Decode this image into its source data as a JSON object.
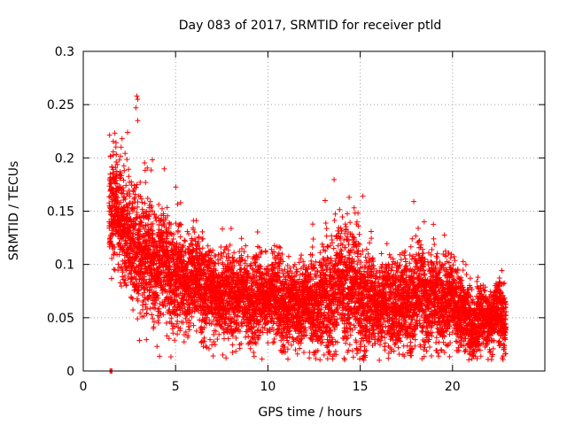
{
  "chart_data": {
    "type": "scatter",
    "title": "Day 083 of 2017, SRMTID for receiver ptld",
    "xlabel": "GPS time / hours",
    "ylabel": "SRMTID / TECUs",
    "xlim": [
      0,
      25
    ],
    "ylim": [
      0,
      0.3
    ],
    "xticks": [
      0,
      5,
      10,
      15,
      20
    ],
    "xtick_labels": [
      "0",
      "5",
      "10",
      "15",
      "20"
    ],
    "yticks": [
      0,
      0.05,
      0.1,
      0.15,
      0.2,
      0.25,
      0.3
    ],
    "ytick_labels": [
      "0",
      "0.05",
      "0.1",
      "0.15",
      "0.2",
      "0.25",
      "0.3"
    ],
    "grid": true,
    "legend": "none",
    "marker": "plus",
    "color": "#ff0000",
    "series": [
      {
        "name": "SRMTID",
        "x_range": [
          1.4,
          22.9
        ],
        "sample_step_hours": 0.0083,
        "points_per_sample": 3,
        "profile_hours": [
          1.4,
          2.0,
          3.0,
          4.0,
          5.0,
          6.0,
          8.0,
          10.0,
          12.0,
          13.0,
          14.0,
          15.0,
          16.0,
          17.0,
          18.0,
          19.0,
          20.0,
          21.0,
          22.0,
          22.9
        ],
        "typical_values": [
          0.16,
          0.14,
          0.11,
          0.1,
          0.09,
          0.08,
          0.07,
          0.07,
          0.06,
          0.07,
          0.08,
          0.07,
          0.06,
          0.065,
          0.065,
          0.07,
          0.065,
          0.045,
          0.05,
          0.05
        ],
        "spread_values": [
          0.03,
          0.03,
          0.035,
          0.03,
          0.03,
          0.025,
          0.022,
          0.02,
          0.02,
          0.03,
          0.035,
          0.03,
          0.022,
          0.025,
          0.025,
          0.025,
          0.022,
          0.015,
          0.015,
          0.015
        ],
        "isolated_points": [
          [
            1.45,
            0.0
          ],
          [
            1.5,
            0.0
          ],
          [
            1.55,
            0.0
          ],
          [
            2.9,
            0.258
          ],
          [
            2.95,
            0.255
          ],
          [
            2.85,
            0.247
          ],
          [
            2.95,
            0.235
          ],
          [
            2.1,
            0.218
          ],
          [
            2.05,
            0.21
          ],
          [
            2.4,
            0.224
          ],
          [
            14.4,
            0.163
          ],
          [
            13.1,
            0.16
          ],
          [
            17.9,
            0.159
          ]
        ]
      }
    ]
  }
}
